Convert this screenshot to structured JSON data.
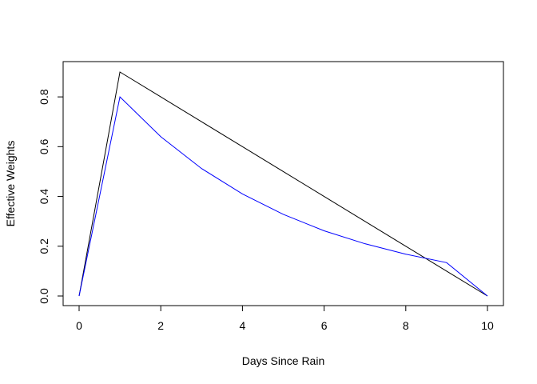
{
  "chart_data": {
    "type": "line",
    "title": "",
    "xlabel": "Days Since Rain",
    "ylabel": "Effective Weights",
    "xlim": [
      0,
      10
    ],
    "ylim": [
      0,
      0.9
    ],
    "xticks": [
      0,
      2,
      4,
      6,
      8,
      10
    ],
    "yticks": [
      0.0,
      0.2,
      0.4,
      0.6,
      0.8
    ],
    "xtick_labels": [
      "0",
      "2",
      "4",
      "6",
      "8",
      "10"
    ],
    "ytick_labels": [
      "0.0",
      "0.2",
      "0.4",
      "0.6",
      "0.8"
    ],
    "grid": false,
    "legend": "none",
    "series": [
      {
        "color": "#000000",
        "x": [
          0,
          1,
          2,
          3,
          4,
          5,
          6,
          7,
          8,
          9,
          10
        ],
        "y": [
          0.0,
          0.9,
          0.8,
          0.7,
          0.6,
          0.5,
          0.4,
          0.3,
          0.2,
          0.1,
          0.0
        ]
      },
      {
        "color": "#0000ff",
        "x": [
          0,
          1,
          2,
          3,
          4,
          5,
          6,
          7,
          8,
          9,
          10
        ],
        "y": [
          0.0,
          0.8,
          0.64,
          0.512,
          0.41,
          0.328,
          0.262,
          0.21,
          0.168,
          0.134,
          0.0
        ]
      }
    ]
  }
}
